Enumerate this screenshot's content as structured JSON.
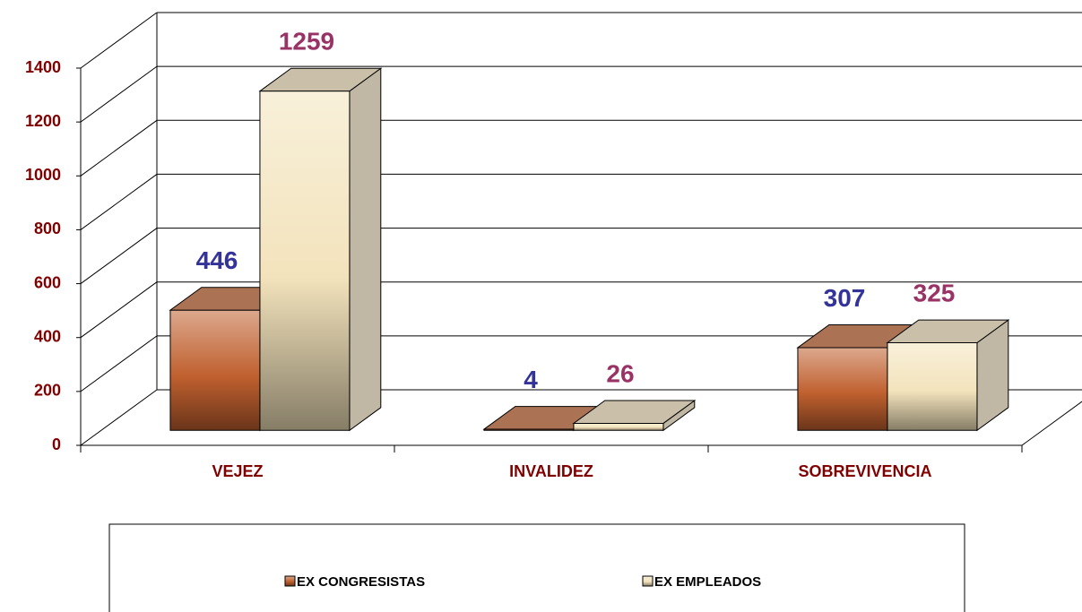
{
  "chart_data": {
    "type": "bar3d",
    "categories": [
      "VEJEZ",
      "INVALIDEZ",
      "SOBREVIVENCIA"
    ],
    "series": [
      {
        "name": "EX CONGRESISTAS",
        "color": "#c0602f",
        "label_color": "#333399",
        "values": [
          446,
          4,
          307
        ]
      },
      {
        "name": "EX EMPLEADOS",
        "color": "#f3e3bc",
        "label_color": "#993366",
        "values": [
          1259,
          26,
          325
        ]
      }
    ],
    "ylim": [
      0,
      1400
    ],
    "yticks": [
      0,
      200,
      400,
      600,
      800,
      1000,
      1200,
      1400
    ],
    "grid": true,
    "axis_label_color": "#800000",
    "legend": "bottom"
  }
}
